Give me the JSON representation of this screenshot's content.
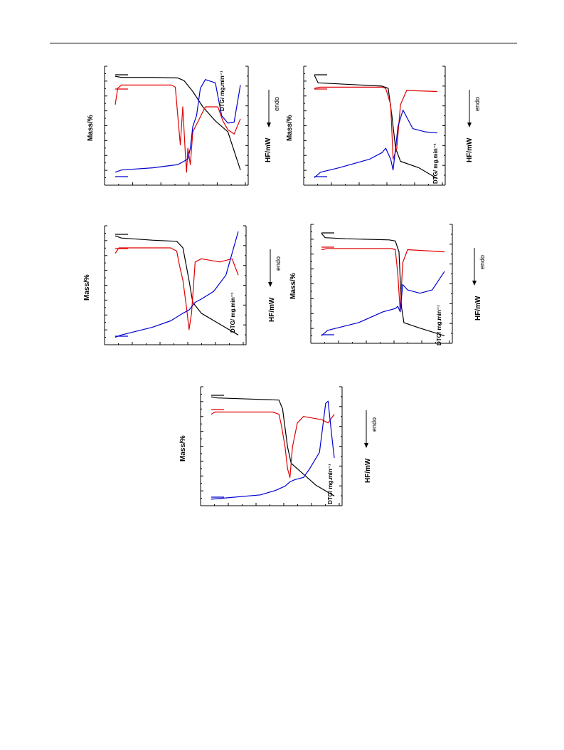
{
  "page": {
    "colors": {
      "mass": "#000000",
      "dtg": "#e00000",
      "hf": "#0000d0",
      "axis": "#000000"
    }
  },
  "labels": {
    "mass": "Mass/%",
    "dtg": "DTG/ mg.min⁻¹",
    "hf": "HF/mW",
    "endo": "endo"
  },
  "chart_data": [
    {
      "type": "line",
      "orientation": "rotated-90",
      "series": [
        {
          "key": "mass",
          "values": [
            [
              0,
              0.96
            ],
            [
              0.05,
              0.95
            ],
            [
              0.3,
              0.95
            ],
            [
              0.5,
              0.945
            ],
            [
              0.55,
              0.92
            ],
            [
              0.62,
              0.82
            ],
            [
              0.7,
              0.68
            ],
            [
              0.8,
              0.55
            ],
            [
              0.9,
              0.45
            ],
            [
              1,
              0.1
            ]
          ]
        },
        {
          "key": "dtg",
          "values": [
            [
              0,
              0.7
            ],
            [
              0.02,
              0.85
            ],
            [
              0.05,
              0.88
            ],
            [
              0.45,
              0.88
            ],
            [
              0.48,
              0.86
            ],
            [
              0.52,
              0.33
            ],
            [
              0.54,
              0.68
            ],
            [
              0.56,
              0.25
            ],
            [
              0.57,
              0.08
            ],
            [
              0.58,
              0.3
            ],
            [
              0.6,
              0.15
            ],
            [
              0.62,
              0.45
            ],
            [
              0.72,
              0.68
            ],
            [
              0.82,
              0.68
            ],
            [
              0.86,
              0.55
            ],
            [
              0.9,
              0.47
            ],
            [
              0.95,
              0.43
            ],
            [
              1,
              0.57
            ]
          ]
        },
        {
          "key": "hf",
          "values": [
            [
              0,
              0.08
            ],
            [
              0.05,
              0.1
            ],
            [
              0.3,
              0.12
            ],
            [
              0.5,
              0.15
            ],
            [
              0.58,
              0.2
            ],
            [
              0.6,
              0.3
            ],
            [
              0.62,
              0.5
            ],
            [
              0.65,
              0.6
            ],
            [
              0.68,
              0.85
            ],
            [
              0.72,
              0.93
            ],
            [
              0.8,
              0.9
            ],
            [
              0.85,
              0.6
            ],
            [
              0.9,
              0.53
            ],
            [
              0.95,
              0.54
            ],
            [
              1,
              0.88
            ]
          ]
        }
      ]
    },
    {
      "type": "line",
      "orientation": "rotated-90",
      "series": [
        {
          "key": "mass",
          "values": [
            [
              0,
              0.97
            ],
            [
              0.03,
              0.9
            ],
            [
              0.2,
              0.89
            ],
            [
              0.55,
              0.87
            ],
            [
              0.6,
              0.85
            ],
            [
              0.63,
              0.6
            ],
            [
              0.66,
              0.3
            ],
            [
              0.7,
              0.18
            ],
            [
              0.85,
              0.12
            ],
            [
              1,
              0.02
            ]
          ]
        },
        {
          "key": "dtg",
          "values": [
            [
              0,
              0.85
            ],
            [
              0.05,
              0.86
            ],
            [
              0.55,
              0.86
            ],
            [
              0.58,
              0.85
            ],
            [
              0.62,
              0.7
            ],
            [
              0.64,
              0.2
            ],
            [
              0.67,
              0.3
            ],
            [
              0.7,
              0.7
            ],
            [
              0.75,
              0.83
            ],
            [
              1,
              0.82
            ]
          ]
        },
        {
          "key": "hf",
          "values": [
            [
              0,
              0.03
            ],
            [
              0.05,
              0.08
            ],
            [
              0.2,
              0.12
            ],
            [
              0.45,
              0.2
            ],
            [
              0.55,
              0.26
            ],
            [
              0.58,
              0.3
            ],
            [
              0.62,
              0.2
            ],
            [
              0.64,
              0.1
            ],
            [
              0.66,
              0.3
            ],
            [
              0.68,
              0.5
            ],
            [
              0.72,
              0.65
            ],
            [
              0.8,
              0.48
            ],
            [
              0.9,
              0.45
            ],
            [
              1,
              0.44
            ]
          ]
        }
      ]
    },
    {
      "type": "line",
      "orientation": "rotated-90",
      "series": [
        {
          "key": "mass",
          "values": [
            [
              0,
              0.96
            ],
            [
              0.05,
              0.94
            ],
            [
              0.3,
              0.92
            ],
            [
              0.5,
              0.91
            ],
            [
              0.55,
              0.85
            ],
            [
              0.6,
              0.55
            ],
            [
              0.63,
              0.35
            ],
            [
              0.7,
              0.25
            ],
            [
              0.85,
              0.15
            ],
            [
              1,
              0.05
            ]
          ]
        },
        {
          "key": "dtg",
          "values": [
            [
              0,
              0.8
            ],
            [
              0.03,
              0.85
            ],
            [
              0.45,
              0.85
            ],
            [
              0.5,
              0.82
            ],
            [
              0.52,
              0.7
            ],
            [
              0.55,
              0.55
            ],
            [
              0.58,
              0.3
            ],
            [
              0.6,
              0.1
            ],
            [
              0.62,
              0.25
            ],
            [
              0.65,
              0.72
            ],
            [
              0.7,
              0.75
            ],
            [
              0.85,
              0.72
            ],
            [
              0.95,
              0.75
            ],
            [
              1,
              0.6
            ]
          ]
        },
        {
          "key": "hf",
          "values": [
            [
              0,
              0.03
            ],
            [
              0.05,
              0.05
            ],
            [
              0.3,
              0.12
            ],
            [
              0.45,
              0.18
            ],
            [
              0.55,
              0.25
            ],
            [
              0.6,
              0.28
            ],
            [
              0.65,
              0.35
            ],
            [
              0.7,
              0.38
            ],
            [
              0.8,
              0.45
            ],
            [
              0.9,
              0.6
            ],
            [
              0.95,
              0.8
            ],
            [
              1,
              1.0
            ]
          ]
        }
      ]
    },
    {
      "type": "line",
      "orientation": "rotated-90",
      "series": [
        {
          "key": "mass",
          "values": [
            [
              0,
              0.97
            ],
            [
              0.03,
              0.93
            ],
            [
              0.2,
              0.92
            ],
            [
              0.55,
              0.91
            ],
            [
              0.6,
              0.9
            ],
            [
              0.63,
              0.8
            ],
            [
              0.65,
              0.3
            ],
            [
              0.67,
              0.15
            ],
            [
              0.8,
              0.1
            ],
            [
              1,
              0.03
            ]
          ]
        },
        {
          "key": "dtg",
          "values": [
            [
              0,
              0.82
            ],
            [
              0.05,
              0.83
            ],
            [
              0.57,
              0.83
            ],
            [
              0.6,
              0.82
            ],
            [
              0.62,
              0.6
            ],
            [
              0.64,
              0.25
            ],
            [
              0.66,
              0.7
            ],
            [
              0.7,
              0.82
            ],
            [
              1,
              0.8
            ]
          ]
        },
        {
          "key": "hf",
          "values": [
            [
              0,
              0.03
            ],
            [
              0.05,
              0.08
            ],
            [
              0.3,
              0.15
            ],
            [
              0.5,
              0.25
            ],
            [
              0.6,
              0.28
            ],
            [
              0.62,
              0.3
            ],
            [
              0.64,
              0.25
            ],
            [
              0.66,
              0.5
            ],
            [
              0.7,
              0.45
            ],
            [
              0.8,
              0.42
            ],
            [
              0.9,
              0.45
            ],
            [
              1,
              0.62
            ]
          ]
        }
      ]
    },
    {
      "type": "line",
      "orientation": "rotated-90",
      "series": [
        {
          "key": "mass",
          "values": [
            [
              0,
              0.96
            ],
            [
              0.05,
              0.95
            ],
            [
              0.3,
              0.94
            ],
            [
              0.55,
              0.93
            ],
            [
              0.58,
              0.85
            ],
            [
              0.62,
              0.5
            ],
            [
              0.65,
              0.35
            ],
            [
              0.75,
              0.25
            ],
            [
              0.85,
              0.15
            ],
            [
              1,
              0.05
            ]
          ]
        },
        {
          "key": "dtg",
          "values": [
            [
              0,
              0.8
            ],
            [
              0.03,
              0.82
            ],
            [
              0.5,
              0.82
            ],
            [
              0.55,
              0.8
            ],
            [
              0.57,
              0.7
            ],
            [
              0.6,
              0.5
            ],
            [
              0.62,
              0.3
            ],
            [
              0.64,
              0.22
            ],
            [
              0.66,
              0.5
            ],
            [
              0.7,
              0.72
            ],
            [
              0.75,
              0.78
            ],
            [
              0.9,
              0.75
            ],
            [
              0.95,
              0.72
            ],
            [
              1,
              0.8
            ]
          ]
        },
        {
          "key": "hf",
          "values": [
            [
              0,
              0.02
            ],
            [
              0.1,
              0.03
            ],
            [
              0.4,
              0.06
            ],
            [
              0.52,
              0.1
            ],
            [
              0.6,
              0.14
            ],
            [
              0.64,
              0.18
            ],
            [
              0.68,
              0.2
            ],
            [
              0.75,
              0.22
            ],
            [
              0.8,
              0.3
            ],
            [
              0.88,
              0.45
            ],
            [
              0.93,
              0.9
            ],
            [
              0.95,
              0.92
            ],
            [
              0.98,
              0.6
            ],
            [
              1,
              0.4
            ]
          ]
        }
      ]
    }
  ]
}
